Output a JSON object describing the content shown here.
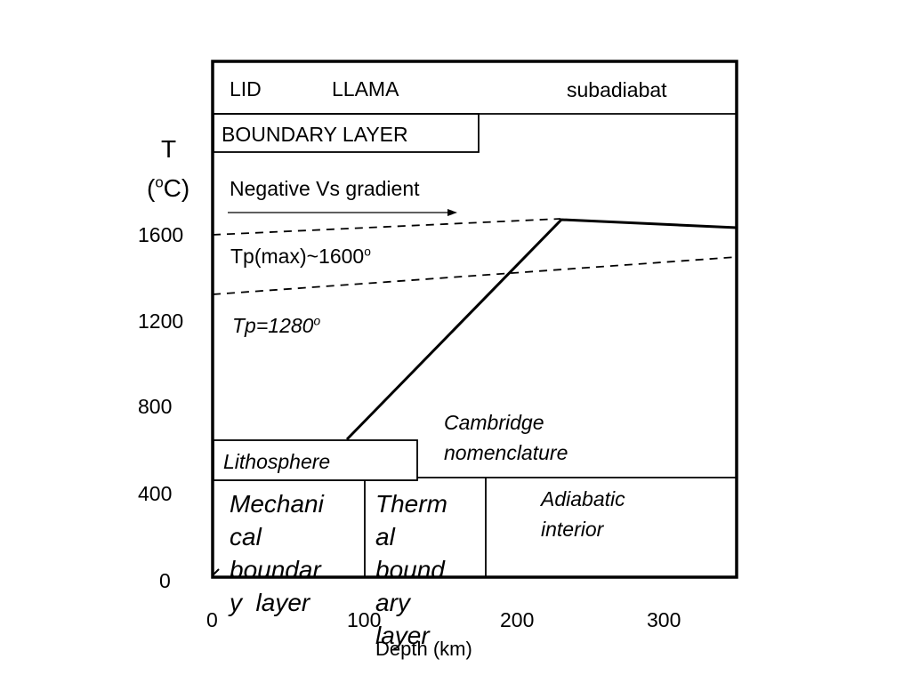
{
  "y_axis": {
    "label_letter": "T",
    "label_unit_open": "(",
    "label_unit_sup": "o",
    "label_unit_close": "C)",
    "ticks": [
      "1600",
      "1200",
      "800",
      "400",
      "0"
    ]
  },
  "x_axis": {
    "ticks": [
      "0",
      "100",
      "200",
      "300"
    ],
    "label": "Depth (km)"
  },
  "top_band": {
    "lid": "LID",
    "llama": "LLAMA",
    "subadiabat": "subadiabat"
  },
  "boundary_layer_box": "BOUNDARY LAYER",
  "negative_vs": "Negative Vs gradient",
  "tp_max": {
    "text": "Tp(max)~1600",
    "sup": "o"
  },
  "tp_1280": {
    "text": "Tp=1280",
    "sup": "o"
  },
  "cambridge": {
    "line1": "Cambridge",
    "line2": "nomenclature"
  },
  "lithosphere_box": "Lithosphere",
  "mechanical": [
    "Mechani",
    "cal",
    "boundar",
    "y  layer"
  ],
  "thermal": [
    "Therm",
    "al",
    "bound",
    "ary",
    "layer"
  ],
  "adiabatic": {
    "line1": "Adiabatic",
    "line2": "interior"
  },
  "colors": {
    "ink": "#000000",
    "background": "#ffffff"
  }
}
